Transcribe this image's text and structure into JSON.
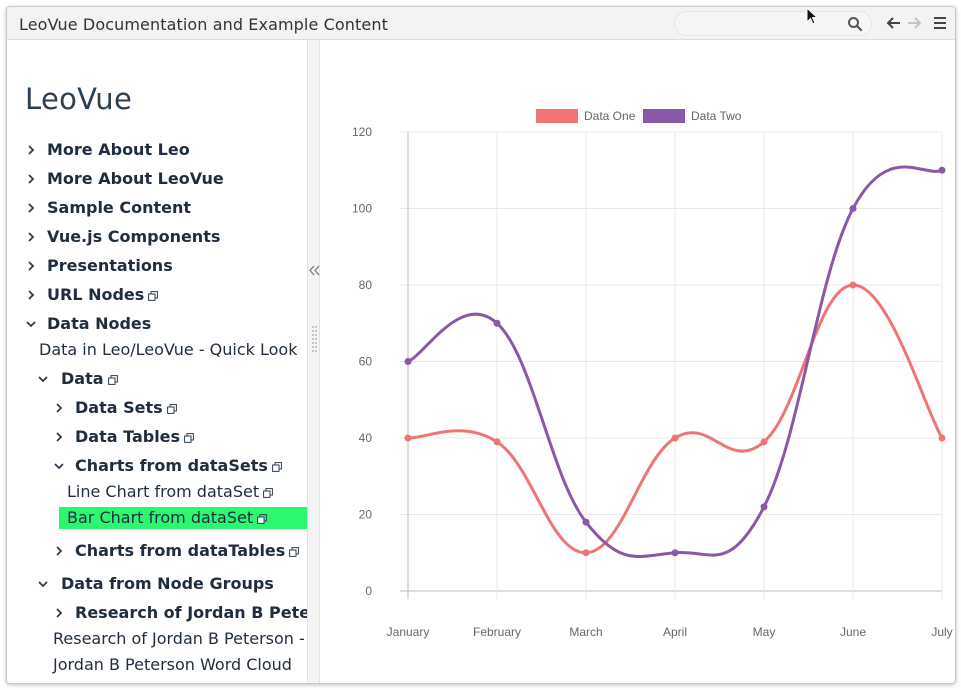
{
  "window": {
    "title": "LeoVue Documentation and Example Content"
  },
  "toolbar": {
    "search_placeholder": "",
    "icons": [
      "search-icon",
      "arrow-left-icon",
      "arrow-right-icon",
      "menu-icon"
    ]
  },
  "sidebar": {
    "title": "LeoVue",
    "nodes": [
      {
        "label": "More About Leo",
        "bold": true,
        "expanded": false,
        "clone": false
      },
      {
        "label": "More About LeoVue",
        "bold": true,
        "expanded": false,
        "clone": false
      },
      {
        "label": "Sample Content",
        "bold": true,
        "expanded": false,
        "clone": false
      },
      {
        "label": "Vue.js Components",
        "bold": true,
        "expanded": false,
        "clone": false
      },
      {
        "label": "Presentations",
        "bold": true,
        "expanded": false,
        "clone": false
      },
      {
        "label": "URL Nodes",
        "bold": true,
        "expanded": false,
        "clone": true
      },
      {
        "label": "Data Nodes",
        "bold": true,
        "expanded": true,
        "clone": false
      },
      {
        "label": "Data in Leo/LeoVue - Quick Look",
        "bold": false,
        "clone": false
      },
      {
        "label": "Data",
        "bold": true,
        "expanded": true,
        "clone": true
      },
      {
        "label": "Data Sets",
        "bold": true,
        "expanded": false,
        "clone": true
      },
      {
        "label": "Data Tables",
        "bold": true,
        "expanded": false,
        "clone": true
      },
      {
        "label": "Charts from dataSets",
        "bold": true,
        "expanded": true,
        "clone": true
      },
      {
        "label": "Line Chart from dataSet",
        "bold": false,
        "clone": true,
        "selected": true
      },
      {
        "label": "Bar Chart from dataSet",
        "bold": false,
        "clone": true
      },
      {
        "label": "Charts from dataTables",
        "bold": true,
        "expanded": false,
        "clone": true
      },
      {
        "label": "Data from Node Groups",
        "bold": true,
        "expanded": true,
        "clone": false
      },
      {
        "label": "Research of Jordan B Peterson",
        "bold": true,
        "expanded": false,
        "clone": false
      },
      {
        "label": "Research of Jordan B Peterson - Sur",
        "bold": false,
        "clone": false
      },
      {
        "label": "Jordan B Peterson Word Cloud",
        "bold": false,
        "clone": false
      }
    ]
  },
  "colors": {
    "selected_bg": "#2cf771",
    "series_one": "#f07474",
    "series_two": "#8a58a8"
  },
  "chart_data": {
    "type": "line",
    "title": "",
    "categories": [
      "January",
      "February",
      "March",
      "April",
      "May",
      "June",
      "July"
    ],
    "series": [
      {
        "name": "Data One",
        "color": "#f07474",
        "values": [
          40,
          39,
          10,
          40,
          39,
          80,
          40
        ]
      },
      {
        "name": "Data Two",
        "color": "#8a58a8",
        "values": [
          60,
          70,
          18,
          10,
          22,
          100,
          110
        ]
      }
    ],
    "ylim": [
      0,
      120
    ],
    "yticks": [
      0,
      20,
      40,
      60,
      80,
      100,
      120
    ],
    "xlabel": "",
    "ylabel": "",
    "legend": "top-center",
    "grid": true
  }
}
